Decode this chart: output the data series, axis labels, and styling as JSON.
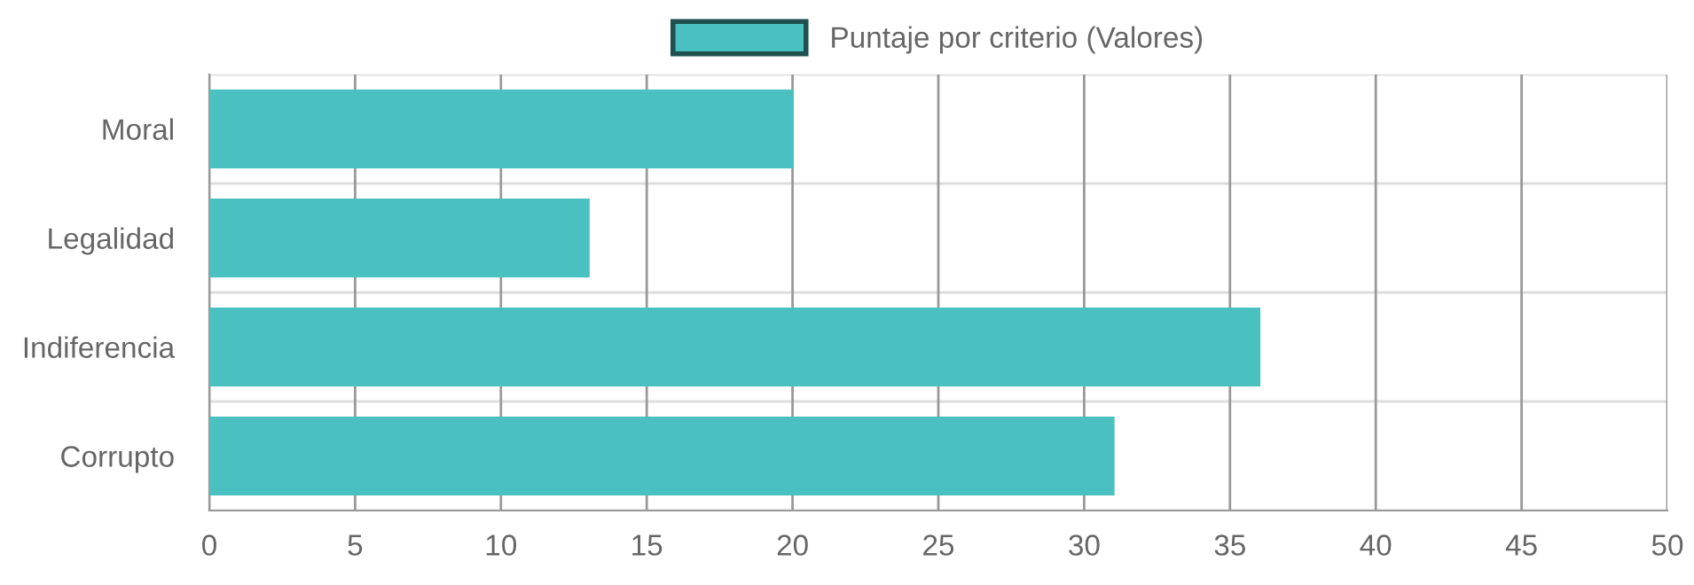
{
  "chart_data": {
    "type": "bar",
    "orientation": "horizontal",
    "categories": [
      "Moral",
      "Legalidad",
      "Indiferencia",
      "Corrupto"
    ],
    "series": [
      {
        "name": "Puntaje por criterio (Valores)",
        "color": "#4bc0c0",
        "values": [
          20,
          13,
          36,
          31
        ]
      }
    ],
    "xlim": [
      0,
      50
    ],
    "xticks": [
      0,
      5,
      10,
      15,
      20,
      25,
      30,
      35,
      40,
      45,
      50
    ],
    "grid": true,
    "legend": "top"
  }
}
